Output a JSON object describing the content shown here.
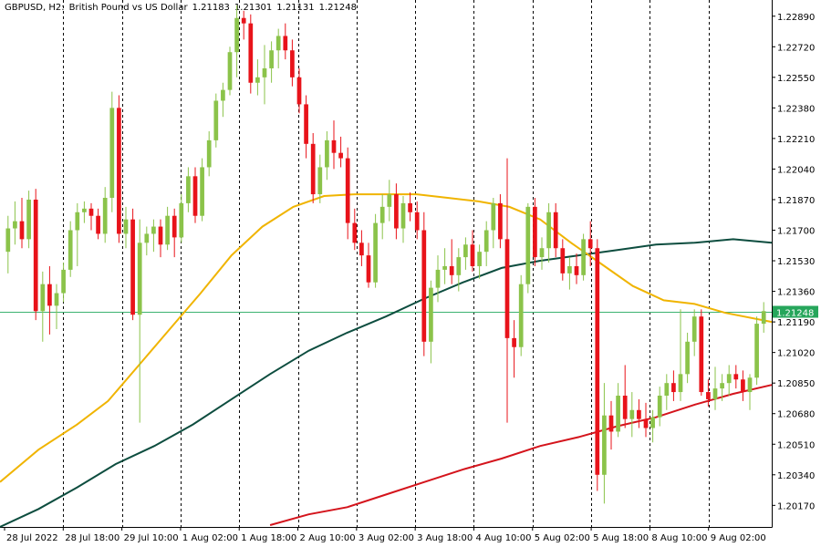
{
  "header": {
    "symbol": "GBPUSD, H2:",
    "description": "British Pound vs US Dollar",
    "open": "1.21183",
    "high": "1.21301",
    "low": "1.21131",
    "close": "1.21248"
  },
  "chart_data": {
    "type": "candlestick",
    "symbol": "GBPUSD",
    "timeframe": "H2",
    "ylim": [
      1.2005,
      1.2298
    ],
    "y_ticks": [
      "1.22890",
      "1.22720",
      "1.22550",
      "1.22380",
      "1.22210",
      "1.22040",
      "1.21870",
      "1.21700",
      "1.21530",
      "1.21360",
      "1.21190",
      "1.21020",
      "1.20850",
      "1.20680",
      "1.20510",
      "1.20340",
      "1.20170"
    ],
    "x_ticks": [
      "28 Jul 2022",
      "28 Jul 18:00",
      "29 Jul 10:00",
      "1 Aug 02:00",
      "1 Aug 18:00",
      "2 Aug 10:00",
      "3 Aug 02:00",
      "3 Aug 18:00",
      "4 Aug 10:00",
      "5 Aug 02:00",
      "5 Aug 18:00",
      "8 Aug 10:00",
      "9 Aug 02:00"
    ],
    "current_price": "1.21248",
    "grid": "vertical dashed",
    "colors": {
      "bull": "#8bc34a",
      "bear": "#e8131a",
      "price_line": "#3cb371",
      "ma_fast": "#f0b400",
      "ma_mid": "#0d4d3f",
      "ma_slow": "#d4141c",
      "price_label_bg": "#26a65b"
    },
    "candles": [
      [
        1.2158,
        1.2178,
        1.2146,
        1.2171
      ],
      [
        1.2171,
        1.2186,
        1.2162,
        1.2175
      ],
      [
        1.2175,
        1.2188,
        1.216,
        1.2165
      ],
      [
        1.2165,
        1.2192,
        1.216,
        1.2187
      ],
      [
        1.2187,
        1.2193,
        1.212,
        1.2125
      ],
      [
        1.2125,
        1.2147,
        1.2108,
        1.214
      ],
      [
        1.214,
        1.215,
        1.2112,
        1.2128
      ],
      [
        1.2128,
        1.214,
        1.2115,
        1.2135
      ],
      [
        1.2135,
        1.2152,
        1.213,
        1.2148
      ],
      [
        1.2148,
        1.2175,
        1.2144,
        1.217
      ],
      [
        1.217,
        1.2185,
        1.215,
        1.218
      ],
      [
        1.218,
        1.2186,
        1.2174,
        1.2182
      ],
      [
        1.2182,
        1.2185,
        1.217,
        1.2178
      ],
      [
        1.2178,
        1.2182,
        1.2165,
        1.2168
      ],
      [
        1.2168,
        1.2194,
        1.2163,
        1.2188
      ],
      [
        1.2188,
        1.2247,
        1.218,
        1.2238
      ],
      [
        1.2238,
        1.2245,
        1.2163,
        1.2168
      ],
      [
        1.2168,
        1.2183,
        1.216,
        1.2176
      ],
      [
        1.2176,
        1.2182,
        1.212,
        1.2123
      ],
      [
        1.2123,
        1.2176,
        1.2063,
        1.2163
      ],
      [
        1.2163,
        1.2172,
        1.2156,
        1.2168
      ],
      [
        1.2168,
        1.2176,
        1.2158,
        1.2172
      ],
      [
        1.2172,
        1.2176,
        1.2155,
        1.2162
      ],
      [
        1.2162,
        1.2183,
        1.2159,
        1.2178
      ],
      [
        1.2178,
        1.2182,
        1.2155,
        1.2166
      ],
      [
        1.2166,
        1.219,
        1.2163,
        1.2185
      ],
      [
        1.2185,
        1.2205,
        1.218,
        1.22
      ],
      [
        1.22,
        1.2205,
        1.2174,
        1.2178
      ],
      [
        1.2178,
        1.221,
        1.2175,
        1.2205
      ],
      [
        1.2205,
        1.2225,
        1.22,
        1.222
      ],
      [
        1.222,
        1.2246,
        1.2216,
        1.2242
      ],
      [
        1.2242,
        1.2252,
        1.2233,
        1.2248
      ],
      [
        1.2248,
        1.2272,
        1.2245,
        1.2269
      ],
      [
        1.2269,
        1.2295,
        1.2255,
        1.2288
      ],
      [
        1.2288,
        1.2292,
        1.2276,
        1.2285
      ],
      [
        1.2285,
        1.229,
        1.2246,
        1.2252
      ],
      [
        1.2252,
        1.2265,
        1.2245,
        1.2255
      ],
      [
        1.2255,
        1.2273,
        1.224,
        1.226
      ],
      [
        1.226,
        1.2275,
        1.2252,
        1.227
      ],
      [
        1.227,
        1.2282,
        1.226,
        1.2278
      ],
      [
        1.2278,
        1.2285,
        1.2265,
        1.227
      ],
      [
        1.227,
        1.2276,
        1.225,
        1.2255
      ],
      [
        1.2255,
        1.226,
        1.2235,
        1.224
      ],
      [
        1.224,
        1.2245,
        1.221,
        1.2218
      ],
      [
        1.2218,
        1.2224,
        1.2185,
        1.219
      ],
      [
        1.219,
        1.2212,
        1.2185,
        1.2205
      ],
      [
        1.2205,
        1.2225,
        1.2198,
        1.222
      ],
      [
        1.222,
        1.2231,
        1.2204,
        1.2213
      ],
      [
        1.2213,
        1.2222,
        1.2205,
        1.221
      ],
      [
        1.221,
        1.2216,
        1.2165,
        1.2174
      ],
      [
        1.2174,
        1.2182,
        1.2159,
        1.2163
      ],
      [
        1.2163,
        1.217,
        1.215,
        1.2156
      ],
      [
        1.2156,
        1.2163,
        1.2138,
        1.2141
      ],
      [
        1.2141,
        1.2179,
        1.2138,
        1.2174
      ],
      [
        1.2174,
        1.219,
        1.2165,
        1.2183
      ],
      [
        1.2183,
        1.2198,
        1.2175,
        1.219
      ],
      [
        1.219,
        1.2196,
        1.2165,
        1.2171
      ],
      [
        1.2171,
        1.2189,
        1.2163,
        1.2185
      ],
      [
        1.2185,
        1.2191,
        1.2175,
        1.218
      ],
      [
        1.218,
        1.2186,
        1.2165,
        1.217
      ],
      [
        1.217,
        1.218,
        1.21,
        1.2108
      ],
      [
        1.2108,
        1.2142,
        1.2096,
        1.2138
      ],
      [
        1.2138,
        1.2156,
        1.213,
        1.2148
      ],
      [
        1.2148,
        1.216,
        1.214,
        1.215
      ],
      [
        1.215,
        1.2165,
        1.214,
        1.2145
      ],
      [
        1.2145,
        1.216,
        1.2136,
        1.2155
      ],
      [
        1.2155,
        1.2166,
        1.2148,
        1.2162
      ],
      [
        1.2162,
        1.217,
        1.2147,
        1.215
      ],
      [
        1.215,
        1.2162,
        1.2143,
        1.2158
      ],
      [
        1.2158,
        1.2175,
        1.215,
        1.217
      ],
      [
        1.217,
        1.2188,
        1.216,
        1.2185
      ],
      [
        1.2185,
        1.219,
        1.216,
        1.2165
      ],
      [
        1.2165,
        1.221,
        1.2063,
        1.211
      ],
      [
        1.211,
        1.212,
        1.2088,
        1.2105
      ],
      [
        1.2105,
        1.2145,
        1.21,
        1.214
      ],
      [
        1.214,
        1.2185,
        1.2135,
        1.2183
      ],
      [
        1.2183,
        1.2188,
        1.215,
        1.2155
      ],
      [
        1.2155,
        1.2166,
        1.2148,
        1.216
      ],
      [
        1.216,
        1.2185,
        1.2152,
        1.218
      ],
      [
        1.218,
        1.2185,
        1.2155,
        1.216
      ],
      [
        1.216,
        1.2165,
        1.2142,
        1.2146
      ],
      [
        1.2146,
        1.2155,
        1.2137,
        1.215
      ],
      [
        1.215,
        1.2157,
        1.214,
        1.2145
      ],
      [
        1.2145,
        1.2168,
        1.2142,
        1.2165
      ],
      [
        1.2165,
        1.2175,
        1.215,
        1.216
      ],
      [
        1.216,
        1.2165,
        1.2025,
        1.2034
      ],
      [
        1.2034,
        1.2085,
        1.2018,
        1.2067
      ],
      [
        1.2067,
        1.2075,
        1.2048,
        1.2058
      ],
      [
        1.2058,
        1.2085,
        1.2055,
        1.2078
      ],
      [
        1.2078,
        1.2095,
        1.206,
        1.2065
      ],
      [
        1.2065,
        1.208,
        1.2055,
        1.207
      ],
      [
        1.207,
        1.2076,
        1.206,
        1.2065
      ],
      [
        1.2065,
        1.2074,
        1.2055,
        1.206
      ],
      [
        1.206,
        1.207,
        1.2052,
        1.2066
      ],
      [
        1.2066,
        1.2083,
        1.2061,
        1.2078
      ],
      [
        1.2078,
        1.209,
        1.207,
        1.2085
      ],
      [
        1.2085,
        1.2092,
        1.2075,
        1.208
      ],
      [
        1.208,
        1.2126,
        1.2075,
        1.209
      ],
      [
        1.209,
        1.2113,
        1.2085,
        1.2108
      ],
      [
        1.2108,
        1.2126,
        1.21,
        1.2122
      ],
      [
        1.2122,
        1.2126,
        1.2078,
        1.208
      ],
      [
        1.208,
        1.2087,
        1.2072,
        1.2076
      ],
      [
        1.2076,
        1.2094,
        1.207,
        1.2082
      ],
      [
        1.2082,
        1.209,
        1.2075,
        1.2085
      ],
      [
        1.2085,
        1.2095,
        1.2078,
        1.209
      ],
      [
        1.209,
        1.2095,
        1.2082,
        1.2087
      ],
      [
        1.2087,
        1.2092,
        1.2075,
        1.208
      ],
      [
        1.208,
        1.209,
        1.207,
        1.2088
      ],
      [
        1.2088,
        1.2122,
        1.2084,
        1.2118
      ],
      [
        1.2118,
        1.213,
        1.2113,
        1.2125
      ]
    ],
    "ma_fast": [
      [
        0,
        1.203
      ],
      [
        0.05,
        1.2048
      ],
      [
        0.1,
        1.2062
      ],
      [
        0.14,
        1.2075
      ],
      [
        0.18,
        1.2095
      ],
      [
        0.22,
        1.2115
      ],
      [
        0.26,
        1.2135
      ],
      [
        0.3,
        1.2156
      ],
      [
        0.34,
        1.2172
      ],
      [
        0.38,
        1.2183
      ],
      [
        0.42,
        1.2189
      ],
      [
        0.46,
        1.219
      ],
      [
        0.5,
        1.219
      ],
      [
        0.54,
        1.219
      ],
      [
        0.58,
        1.2188
      ],
      [
        0.62,
        1.2186
      ],
      [
        0.66,
        1.2183
      ],
      [
        0.7,
        1.2176
      ],
      [
        0.74,
        1.2163
      ],
      [
        0.78,
        1.2151
      ],
      [
        0.82,
        1.2139
      ],
      [
        0.86,
        1.2131
      ],
      [
        0.9,
        1.2129
      ],
      [
        0.94,
        1.2124
      ],
      [
        1.0,
        1.2119
      ]
    ],
    "ma_mid": [
      [
        0,
        1.2005
      ],
      [
        0.05,
        1.2015
      ],
      [
        0.1,
        1.2027
      ],
      [
        0.15,
        1.204
      ],
      [
        0.2,
        1.205
      ],
      [
        0.25,
        1.2062
      ],
      [
        0.3,
        1.2076
      ],
      [
        0.35,
        1.209
      ],
      [
        0.4,
        1.2103
      ],
      [
        0.45,
        1.2113
      ],
      [
        0.5,
        1.2122
      ],
      [
        0.55,
        1.2132
      ],
      [
        0.6,
        1.2141
      ],
      [
        0.65,
        1.2149
      ],
      [
        0.7,
        1.2153
      ],
      [
        0.75,
        1.2156
      ],
      [
        0.8,
        1.2159
      ],
      [
        0.85,
        1.2162
      ],
      [
        0.9,
        1.2163
      ],
      [
        0.95,
        1.2165
      ],
      [
        1.0,
        1.2163
      ]
    ],
    "ma_slow": [
      [
        0.35,
        1.2006
      ],
      [
        0.4,
        1.2012
      ],
      [
        0.45,
        1.2016
      ],
      [
        0.5,
        1.2023
      ],
      [
        0.55,
        1.203
      ],
      [
        0.6,
        1.2037
      ],
      [
        0.65,
        1.2043
      ],
      [
        0.7,
        1.205
      ],
      [
        0.75,
        1.2055
      ],
      [
        0.8,
        1.2061
      ],
      [
        0.85,
        1.2066
      ],
      [
        0.9,
        1.2073
      ],
      [
        0.95,
        1.2079
      ],
      [
        1.0,
        1.2084
      ]
    ]
  }
}
